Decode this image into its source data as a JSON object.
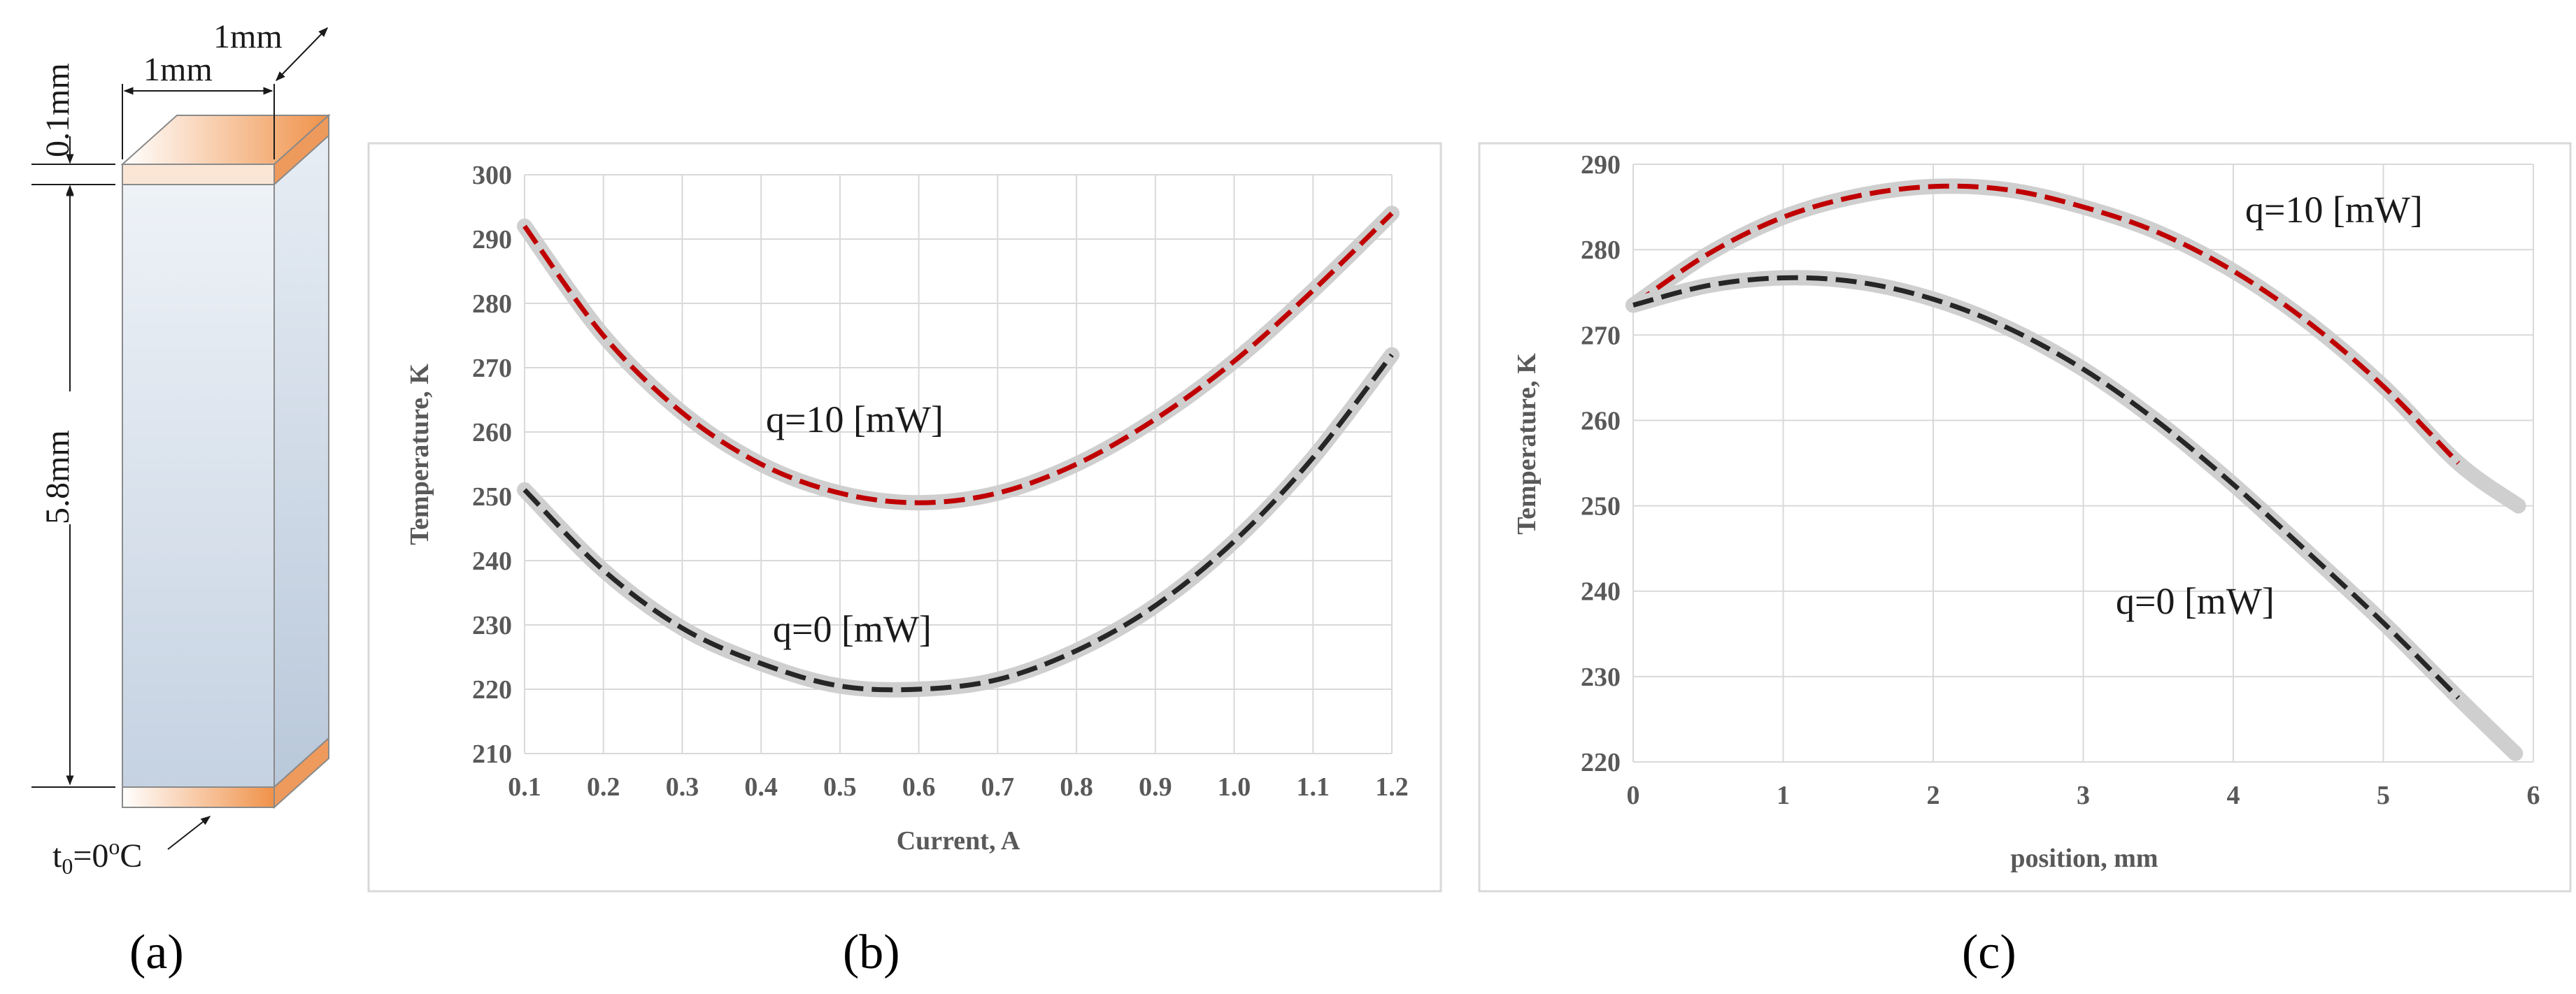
{
  "panels": {
    "a": {
      "label": "(a)",
      "dims": {
        "width1": "1mm",
        "depth": "1mm",
        "thin": "0.1mm",
        "height": "5.8mm"
      },
      "base_temp_t": "t",
      "base_temp_sub": "0",
      "base_temp_eq": "=0",
      "base_temp_sup": "o",
      "base_temp_unit": "C",
      "colors": {
        "contact": "#f0924a",
        "body_top": "#eef2f7",
        "body_bottom": "#c5d2e2",
        "edge": "#808080"
      }
    },
    "b": {
      "label": "(b)"
    },
    "c": {
      "label": "(c)"
    }
  },
  "chart_data": [
    {
      "id": "b",
      "type": "line",
      "title": "",
      "xlabel": "Current, A",
      "ylabel": "Temperature, K",
      "xlim": [
        0.1,
        1.2
      ],
      "ylim": [
        210,
        300
      ],
      "xticks": [
        "0.1",
        "0.2",
        "0.3",
        "0.4",
        "0.5",
        "0.6",
        "0.7",
        "0.8",
        "0.9",
        "1.0",
        "1.1",
        "1.2"
      ],
      "yticks": [
        "210",
        "220",
        "230",
        "240",
        "250",
        "260",
        "270",
        "280",
        "290",
        "300"
      ],
      "grid": true,
      "series": [
        {
          "name": "q=10 [mW]",
          "color": "#c00000",
          "x": [
            0.1,
            0.2,
            0.3,
            0.4,
            0.5,
            0.6,
            0.7,
            0.8,
            0.9,
            1.0,
            1.1,
            1.2
          ],
          "y": [
            292,
            275,
            263,
            255,
            250.5,
            249,
            250.5,
            255,
            262,
            271,
            282,
            294
          ]
        },
        {
          "name": "q=0 [mW]",
          "color": "#262626",
          "x": [
            0.1,
            0.2,
            0.3,
            0.4,
            0.5,
            0.6,
            0.7,
            0.8,
            0.9,
            1.0,
            1.1,
            1.2
          ],
          "y": [
            251,
            238.5,
            229.5,
            224,
            220.5,
            220,
            221.5,
            226,
            233,
            243,
            256,
            272
          ]
        }
      ],
      "annotations": [
        "q=10 [mW]",
        "q=0 [mW]"
      ]
    },
    {
      "id": "c",
      "type": "line",
      "title": "",
      "xlabel": "position, mm",
      "ylabel": "Temperature, K",
      "xlim": [
        0,
        6
      ],
      "ylim": [
        220,
        290
      ],
      "xticks": [
        "0",
        "1",
        "2",
        "3",
        "4",
        "5",
        "6"
      ],
      "yticks": [
        "220",
        "230",
        "240",
        "250",
        "260",
        "270",
        "280",
        "290"
      ],
      "grid": true,
      "series": [
        {
          "name": "q=10 [mW]",
          "color": "#c00000",
          "x": [
            0,
            0.5,
            1,
            1.5,
            2,
            2.5,
            3,
            3.5,
            4,
            4.5,
            5,
            5.5
          ],
          "y": [
            273.5,
            279.5,
            283.8,
            286.3,
            287.4,
            287,
            285,
            282,
            277.5,
            271.5,
            264,
            255
          ]
        },
        {
          "name": "q=0 [mW]",
          "color": "#262626",
          "x": [
            0,
            0.5,
            1,
            1.5,
            2,
            2.5,
            3,
            3.5,
            4,
            4.5,
            5,
            5.5
          ],
          "y": [
            273.5,
            275.8,
            276.7,
            276.2,
            274.2,
            270.8,
            266,
            259.8,
            252.5,
            244.5,
            236.3,
            227.5
          ]
        }
      ],
      "envelope_end": {
        "q10": [
          5.9,
          250
        ],
        "q0": [
          5.88,
          221
        ]
      },
      "annotations": [
        "q=10 [mW]",
        "q=0 [mW]"
      ]
    }
  ]
}
